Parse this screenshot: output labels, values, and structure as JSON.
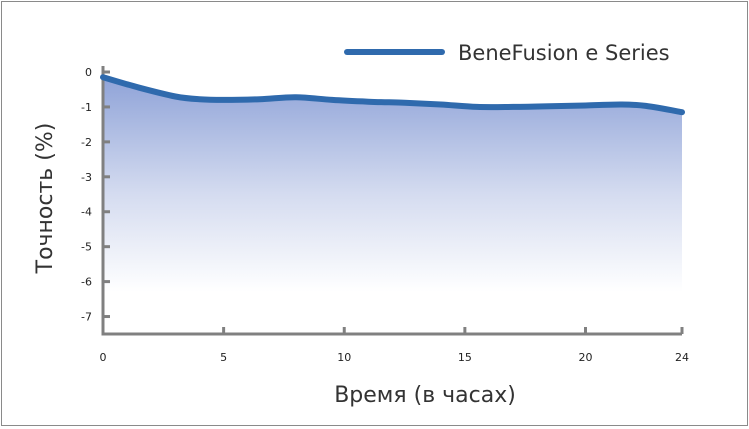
{
  "chart_data": {
    "type": "area",
    "xlabel": "Время (в часах)",
    "ylabel": "Точность (%)",
    "xlim": [
      0,
      24
    ],
    "ylim": [
      -7.5,
      0
    ],
    "x_ticks": [
      0,
      5,
      10,
      15,
      20,
      24
    ],
    "y_ticks": [
      0,
      -1,
      -2,
      -3,
      -4,
      -5,
      -6,
      -7
    ],
    "legend_position": "top-right",
    "grid": false,
    "series": [
      {
        "name": "BeneFusion e Series",
        "color": "#2f6aad",
        "x": [
          0,
          1.5,
          3,
          4,
          5,
          6.5,
          8,
          9.5,
          11,
          12.5,
          14,
          15.5,
          17,
          18.5,
          20,
          21.5,
          22.5,
          24
        ],
        "y": [
          -0.15,
          -0.45,
          -0.7,
          -0.78,
          -0.8,
          -0.78,
          -0.72,
          -0.8,
          -0.85,
          -0.88,
          -0.93,
          -1.0,
          -1.0,
          -0.98,
          -0.96,
          -0.93,
          -0.97,
          -1.15
        ]
      }
    ]
  }
}
